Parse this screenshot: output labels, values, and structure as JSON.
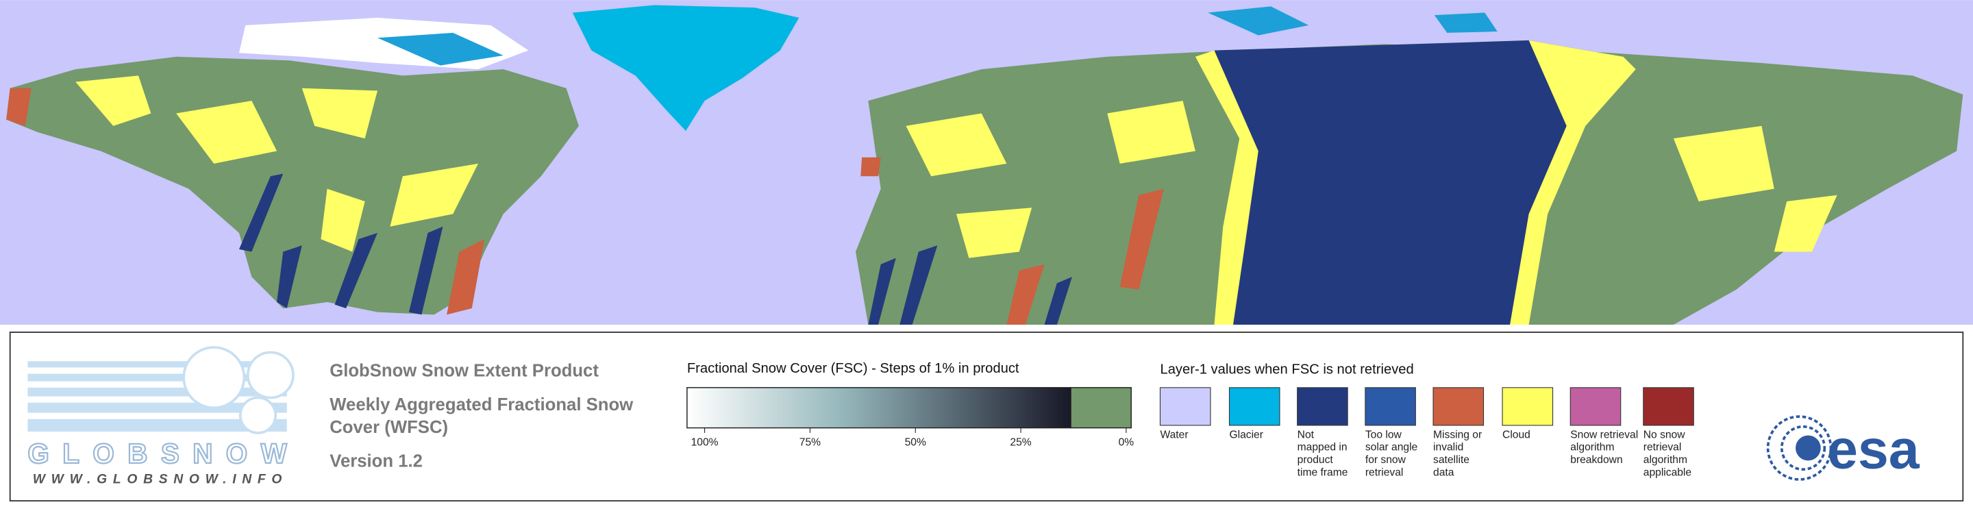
{
  "logo": {
    "name": "GLOBSNOW",
    "url": "WWW.GLOBSNOW.INFO"
  },
  "product": {
    "title": "GlobSnow Snow Extent Product",
    "subtitle": "Weekly Aggregated Fractional Snow Cover (WFSC)",
    "version": "Version 1.2"
  },
  "fsc_scale": {
    "title": "Fractional Snow Cover (FSC) - Steps of 1% in product",
    "ticks": [
      "100%",
      "75%",
      "50%",
      "25%",
      "0%"
    ],
    "snow_color": "#ffffff",
    "dark_color": "#181828",
    "zero_color": "#74996c"
  },
  "layer1_legend": {
    "title": "Layer-1 values when FSC is not retrieved",
    "items": [
      {
        "label": "Water",
        "color": "#ccccff"
      },
      {
        "label": "Glacier",
        "color": "#00b4e6"
      },
      {
        "label": "Not mapped in product time frame",
        "color": "#233a7e"
      },
      {
        "label": "Too low solar angle for snow retrieval",
        "color": "#2b5aa8"
      },
      {
        "label": "Missing or invalid satellite data",
        "color": "#cc6040"
      },
      {
        "label": "Cloud",
        "color": "#ffff60"
      },
      {
        "label": "Snow retrieval algorithm breakdown",
        "color": "#c060a0"
      },
      {
        "label": "No snow retrieval algorithm applicable",
        "color": "#9a2a2a"
      }
    ]
  },
  "esa": "esa"
}
